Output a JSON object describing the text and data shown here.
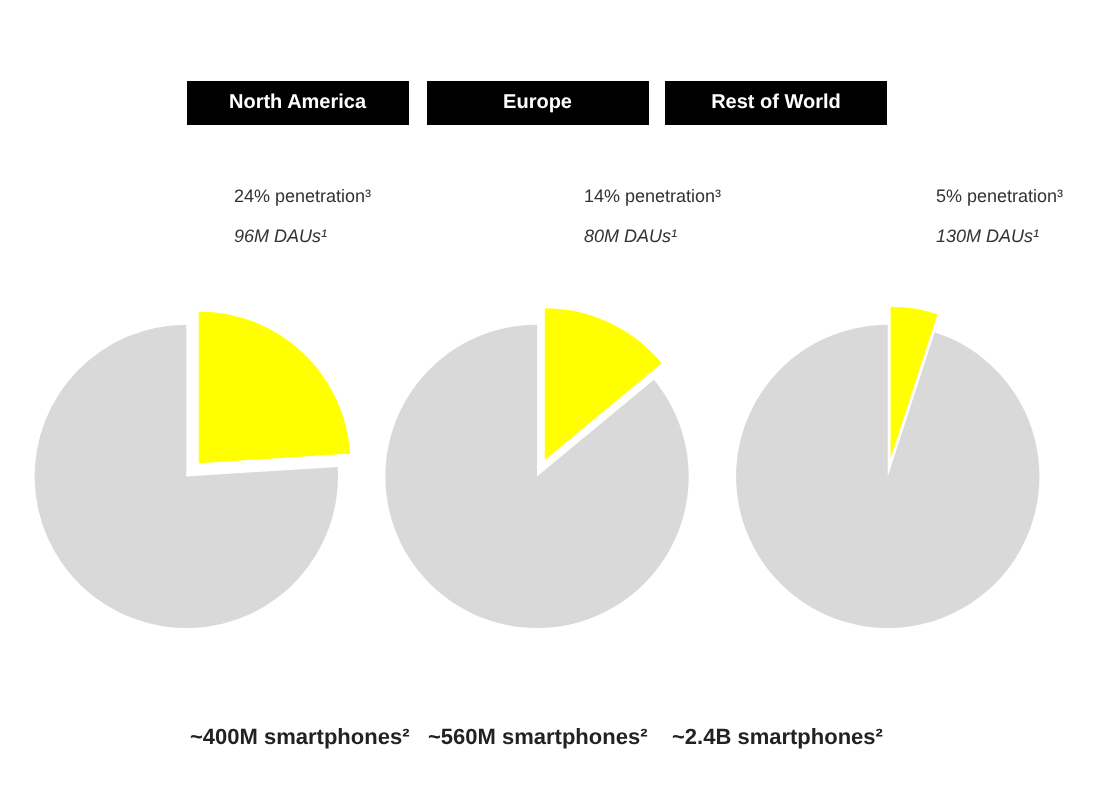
{
  "chart_data": [
    {
      "type": "pie",
      "title": "North America",
      "categories": [
        null,
        null
      ],
      "values": [
        24,
        76
      ],
      "colors": [
        "#ffff00",
        "#d9d9d9"
      ],
      "annotations": [
        "24% penetration³",
        "96M DAUs¹"
      ],
      "xlabel": "~400M smartphones²"
    },
    {
      "type": "pie",
      "title": "Europe",
      "categories": [
        null,
        null
      ],
      "values": [
        14,
        86
      ],
      "colors": [
        "#ffff00",
        "#d9d9d9"
      ],
      "annotations": [
        "14% penetration³",
        "80M DAUs¹"
      ],
      "xlabel": "~560M smartphones²"
    },
    {
      "type": "pie",
      "title": "Rest of World",
      "categories": [
        null,
        null
      ],
      "values": [
        5,
        95
      ],
      "colors": [
        "#ffff00",
        "#d9d9d9"
      ],
      "annotations": [
        "5% penetration³",
        "130M DAUs¹"
      ],
      "xlabel": "~2.4B smartphones²"
    }
  ]
}
